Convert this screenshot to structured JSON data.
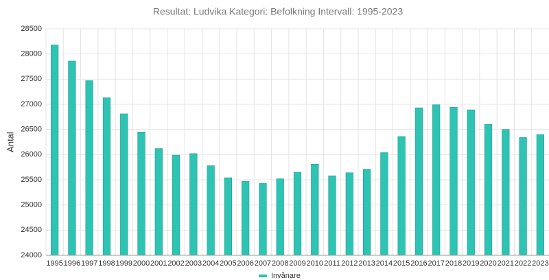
{
  "chart_data": {
    "type": "bar",
    "title": "Resultat: Ludvika Kategori: Befolkning Intervall: 1995-2023",
    "y_label": "Antal",
    "categories": [
      "1995",
      "1996",
      "1997",
      "1998",
      "1999",
      "2000",
      "2001",
      "2002",
      "2003",
      "2004",
      "2005",
      "2006",
      "2007",
      "2008",
      "2009",
      "2010",
      "2011",
      "2012",
      "2013",
      "2014",
      "2015",
      "2016",
      "2017",
      "2018",
      "2019",
      "2020",
      "2021",
      "2022",
      "2023"
    ],
    "series": [
      {
        "name": "Invånare",
        "color": "#2ec4b4",
        "values": [
          28180,
          27860,
          27470,
          27130,
          26810,
          26450,
          26120,
          25990,
          26020,
          25780,
          25540,
          25470,
          25430,
          25520,
          25650,
          25810,
          25580,
          25640,
          25710,
          26040,
          26360,
          26930,
          26990,
          26940,
          26890,
          26600,
          26500,
          26340,
          26400
        ]
      }
    ],
    "ylim": [
      24000,
      28500
    ],
    "yticks": [
      24000,
      24500,
      25000,
      25500,
      26000,
      26500,
      27000,
      27500,
      28000,
      28500
    ],
    "grid": true,
    "legend": "bottom"
  }
}
